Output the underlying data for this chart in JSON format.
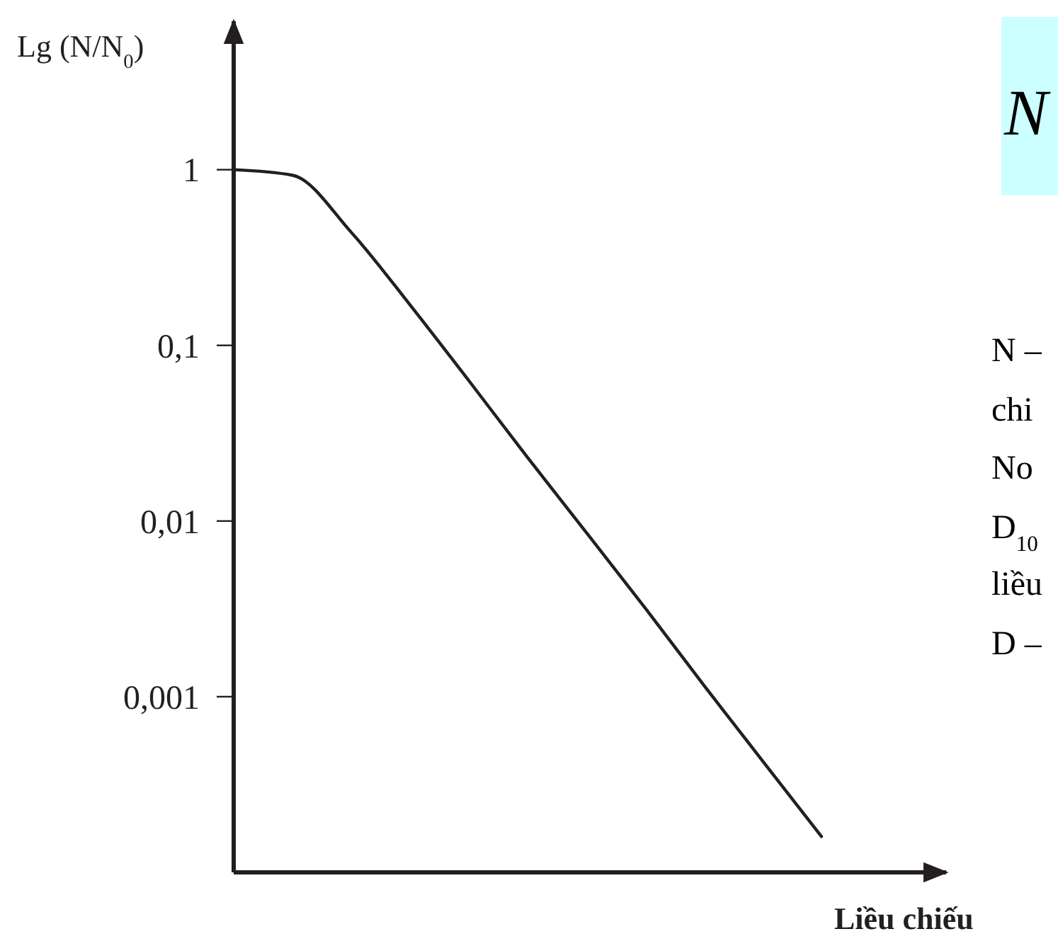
{
  "chart_data": {
    "type": "line",
    "ylabel": "Lg (N/N$_{0}$)",
    "xlabel": "Liều chiếu",
    "categories": [
      null,
      null,
      null,
      null,
      null,
      null,
      null,
      null,
      null,
      null,
      null
    ],
    "series": [
      {
        "color": "#231f20",
        "values": [
          1,
          0.93,
          0.44,
          0.17,
          0.063,
          0.023,
          0.0086,
          0.0032,
          0.00116,
          0.00043,
          0.00016
        ]
      }
    ],
    "log": "y",
    "ylim": [
      0.0001,
      7
    ],
    "yticks": [
      1,
      {
        "value": 0.1,
        "label": "0,1"
      },
      {
        "value": 0.01,
        "label": "0,01"
      },
      {
        "value": 0.001,
        "label": "0,001"
      }
    ],
    "annotations": [
      "N",
      "N –",
      "chi",
      "No",
      "D$_{10}$",
      "liều",
      "D –"
    ]
  }
}
